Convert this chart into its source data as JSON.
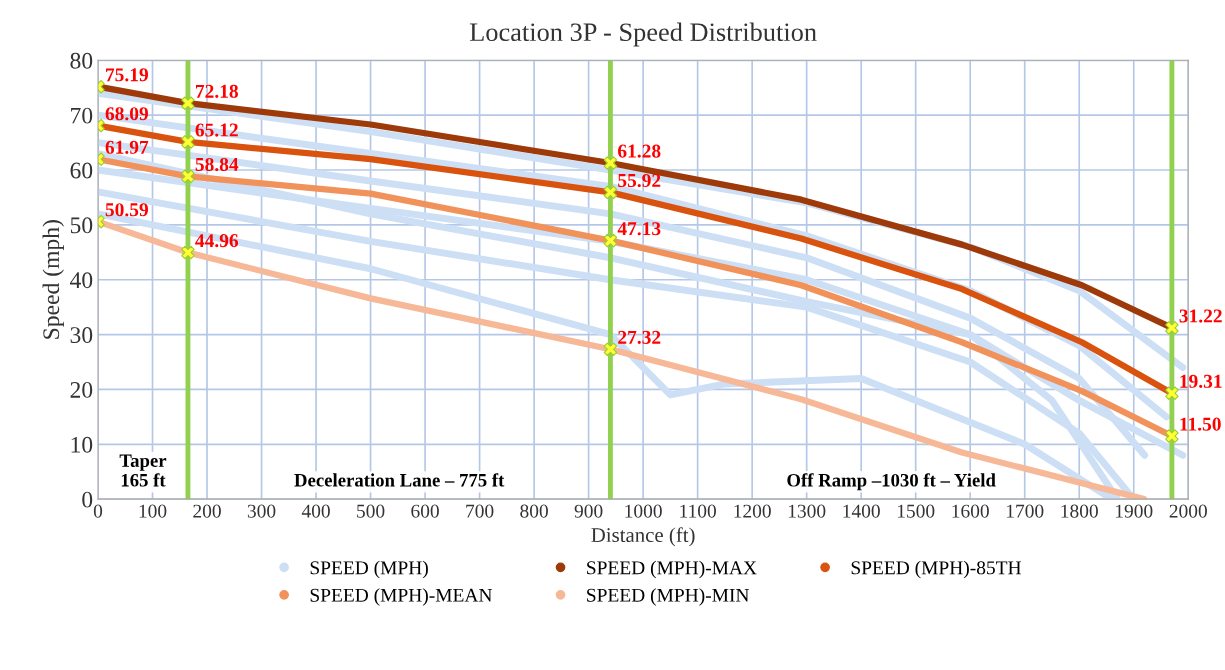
{
  "chart_data": {
    "type": "line",
    "title": "Location 3P - Speed Distribution",
    "xlabel": "Distance (ft)",
    "ylabel": "Speed (mph)",
    "xlim": [
      0,
      2000
    ],
    "xticks": [
      0,
      100,
      200,
      300,
      400,
      500,
      600,
      700,
      800,
      900,
      1000,
      1100,
      1200,
      1300,
      1400,
      1500,
      1600,
      1700,
      1800,
      1900,
      2000
    ],
    "ylim": [
      0,
      80
    ],
    "yticks": [
      0,
      10,
      20,
      30,
      40,
      50,
      60,
      70,
      80
    ],
    "grid": true,
    "legend": "bottom",
    "line_style": "solid",
    "series": [
      {
        "name": "SPEED (MPH)",
        "color": "#cddff5",
        "x": [
          0,
          500,
          940,
          1300,
          1600,
          1800,
          1990
        ],
        "values": [
          74,
          67,
          60,
          54,
          46,
          38,
          24
        ]
      },
      {
        "color": "#cddff5",
        "x": [
          0,
          500,
          940,
          1300,
          1600,
          1800,
          1960
        ],
        "values": [
          70,
          63,
          57,
          48,
          38,
          28,
          15
        ]
      },
      {
        "color": "#cddff5",
        "x": [
          0,
          500,
          940,
          1300,
          1600,
          1800,
          1920
        ],
        "values": [
          65,
          58,
          52,
          44,
          33,
          22,
          8
        ]
      },
      {
        "color": "#cddff5",
        "x": [
          0,
          500,
          940,
          1300,
          1600,
          1750,
          1870
        ],
        "values": [
          60,
          53,
          47,
          40,
          30,
          18,
          0
        ]
      },
      {
        "color": "#cddff5",
        "x": [
          0,
          500,
          940,
          1300,
          1600,
          1800,
          1900
        ],
        "values": [
          56,
          47,
          40,
          35,
          25,
          12,
          0
        ]
      },
      {
        "color": "#cddff5",
        "x": [
          0,
          500,
          940,
          1050,
          1150,
          1400,
          1700,
          1860
        ],
        "values": [
          52,
          42,
          30,
          19,
          21,
          22,
          10,
          0
        ]
      },
      {
        "color": "#cddff5",
        "x": [
          0,
          500,
          940,
          1300,
          1600,
          1800,
          1990
        ],
        "values": [
          63,
          52,
          44,
          36,
          30,
          18,
          8
        ]
      },
      {
        "name": "SPEED (MPH)-MAX",
        "color": "#9e3a0a",
        "x": [
          0,
          165,
          500,
          940,
          1290,
          1585,
          1805,
          1970
        ],
        "values": [
          75.19,
          72.18,
          68.3,
          61.28,
          54.6,
          46.4,
          39,
          31.22
        ]
      },
      {
        "name": "SPEED (MPH)-85TH",
        "color": "#d9530f",
        "x": [
          0,
          165,
          500,
          940,
          1290,
          1585,
          1805,
          1970
        ],
        "values": [
          68.09,
          65.12,
          62,
          55.92,
          47.5,
          38.3,
          28.6,
          19.31
        ]
      },
      {
        "name": "SPEED (MPH)-MEAN",
        "color": "#f0925a",
        "x": [
          0,
          165,
          500,
          940,
          1290,
          1585,
          1805,
          1970
        ],
        "values": [
          61.97,
          58.84,
          55.7,
          47.13,
          39,
          28.6,
          19.7,
          11.5
        ]
      },
      {
        "name": "SPEED (MPH)-MIN",
        "color": "#f6b896",
        "x": [
          0,
          165,
          500,
          940,
          1290,
          1585,
          1919
        ],
        "values": [
          50.59,
          44.96,
          36.6,
          27.32,
          18.2,
          8.5,
          0
        ]
      },
      {
        "type": "scatter",
        "marker": "cross",
        "color": "#ffff33",
        "x": [
          0,
          0,
          0,
          0,
          165,
          165,
          165,
          165,
          940,
          940,
          940,
          940,
          1970,
          1970,
          1970
        ],
        "values": [
          75.19,
          68.09,
          61.97,
          50.59,
          72.18,
          65.12,
          58.84,
          44.96,
          61.28,
          55.92,
          47.13,
          27.32,
          31.22,
          19.31,
          11.5
        ],
        "value_labels": [
          "75.19",
          "68.09",
          "61.97",
          "50.59",
          "72.18",
          "65.12",
          "58.84",
          "44.96",
          "61.28",
          "55.92",
          "47.13",
          "27.32",
          "31.22",
          "19.31",
          "11.50"
        ]
      }
    ],
    "ref_lines": [
      {
        "axis": "x",
        "value": 165,
        "color": "#92d050"
      },
      {
        "axis": "x",
        "value": 940,
        "color": "#92d050"
      },
      {
        "axis": "x",
        "value": 1970,
        "color": "#92d050"
      }
    ],
    "annotations": [
      "Taper\n165 ft",
      "Deceleration Lane – 775 ft",
      "Off Ramp –1030 ft – Yield"
    ]
  }
}
